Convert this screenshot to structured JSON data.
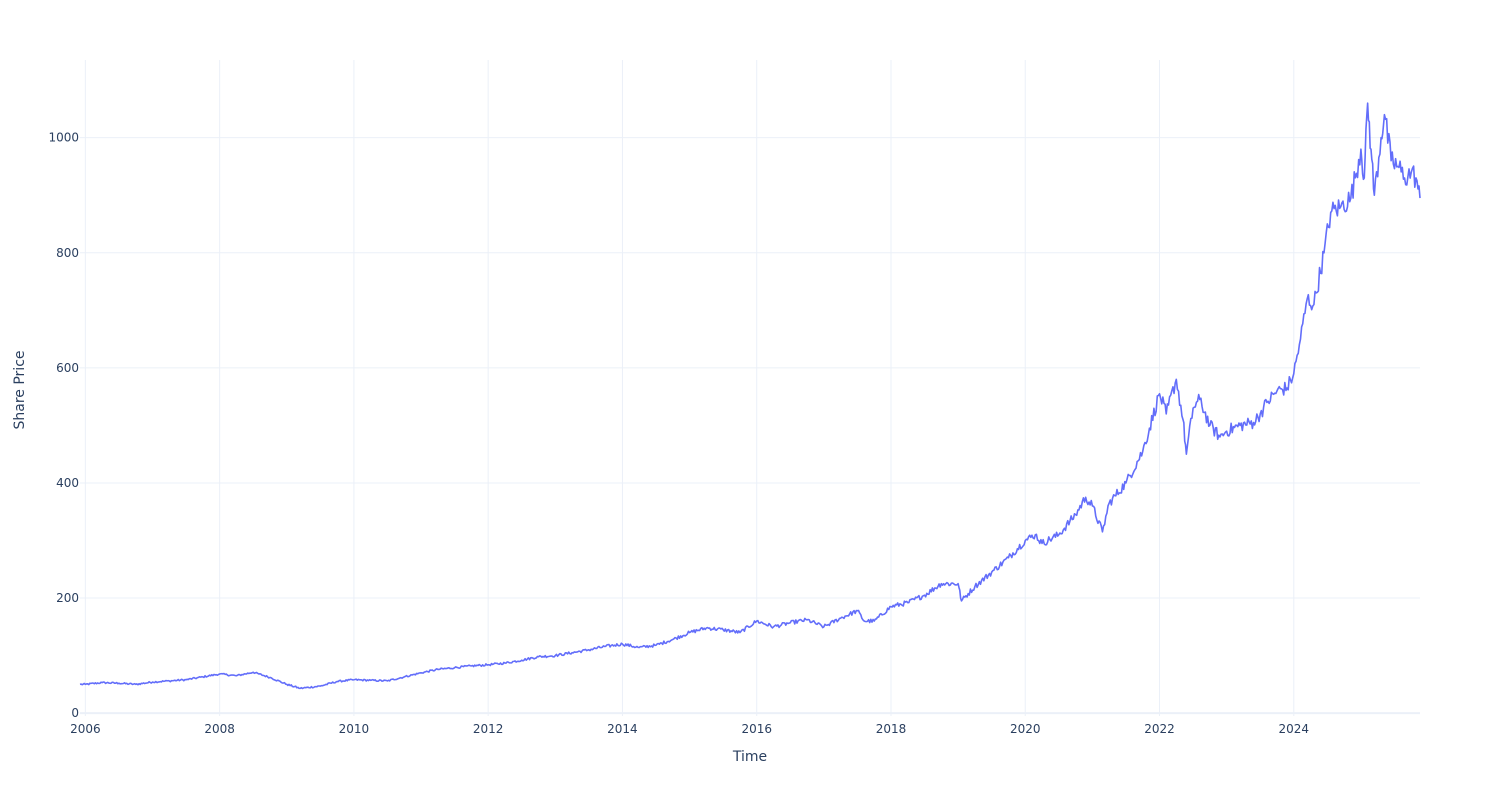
{
  "chart_data": {
    "type": "line",
    "title": "",
    "xlabel": "Time",
    "ylabel": "Share Price",
    "xlim": [
      2005.92,
      2025.88
    ],
    "ylim": [
      -5,
      1135
    ],
    "x_ticks": [
      {
        "value": 2006,
        "label": "2006"
      },
      {
        "value": 2008,
        "label": "2008"
      },
      {
        "value": 2010,
        "label": "2010"
      },
      {
        "value": 2012,
        "label": "2012"
      },
      {
        "value": 2014,
        "label": "2014"
      },
      {
        "value": 2016,
        "label": "2016"
      },
      {
        "value": 2018,
        "label": "2018"
      },
      {
        "value": 2020,
        "label": "2020"
      },
      {
        "value": 2022,
        "label": "2022"
      },
      {
        "value": 2024,
        "label": "2024"
      }
    ],
    "y_ticks": [
      {
        "value": 0,
        "label": "0"
      },
      {
        "value": 200,
        "label": "200"
      },
      {
        "value": 400,
        "label": "400"
      },
      {
        "value": 600,
        "label": "600"
      },
      {
        "value": 800,
        "label": "800"
      },
      {
        "value": 1000,
        "label": "1000"
      }
    ],
    "grid": true,
    "legend": "none",
    "colors": {
      "line": "#636efa",
      "grid": "#ebf0f8",
      "text": "#2a3f5f"
    },
    "series": [
      {
        "x": [
          2005.92,
          2006.0,
          2006.25,
          2006.5,
          2006.75,
          2007.0,
          2007.25,
          2007.5,
          2007.75,
          2008.0,
          2008.25,
          2008.5,
          2008.75,
          2009.0,
          2009.2,
          2009.5,
          2009.75,
          2010.0,
          2010.25,
          2010.5,
          2010.75,
          2011.0,
          2011.25,
          2011.5,
          2011.75,
          2012.0,
          2012.25,
          2012.5,
          2012.75,
          2013.0,
          2013.25,
          2013.5,
          2013.75,
          2014.0,
          2014.25,
          2014.5,
          2014.75,
          2015.0,
          2015.25,
          2015.5,
          2015.75,
          2016.0,
          2016.25,
          2016.5,
          2016.75,
          2017.0,
          2017.25,
          2017.5,
          2017.6,
          2017.75,
          2018.0,
          2018.25,
          2018.5,
          2018.75,
          2019.0,
          2019.05,
          2019.25,
          2019.5,
          2019.75,
          2020.0,
          2020.15,
          2020.25,
          2020.5,
          2020.75,
          2020.9,
          2021.0,
          2021.15,
          2021.25,
          2021.5,
          2021.75,
          2022.0,
          2022.1,
          2022.25,
          2022.35,
          2022.4,
          2022.5,
          2022.6,
          2022.75,
          2022.9,
          2023.0,
          2023.2,
          2023.4,
          2023.5,
          2023.6,
          2023.75,
          2023.9,
          2024.0,
          2024.1,
          2024.2,
          2024.3,
          2024.45,
          2024.55,
          2024.7,
          2024.85,
          2025.0,
          2025.05,
          2025.1,
          2025.15,
          2025.2,
          2025.3,
          2025.35,
          2025.45,
          2025.55,
          2025.65,
          2025.75,
          2025.82,
          2025.88
        ],
        "y": [
          50,
          50,
          53,
          52,
          50,
          54,
          56,
          58,
          63,
          68,
          65,
          71,
          62,
          50,
          43,
          47,
          55,
          58,
          57,
          56,
          63,
          70,
          76,
          79,
          82,
          84,
          87,
          92,
          98,
          100,
          105,
          110,
          116,
          120,
          114,
          118,
          128,
          140,
          148,
          145,
          140,
          160,
          150,
          157,
          162,
          150,
          165,
          178,
          160,
          160,
          185,
          192,
          205,
          225,
          225,
          195,
          220,
          245,
          270,
          300,
          310,
          295,
          310,
          345,
          375,
          360,
          315,
          365,
          400,
          455,
          555,
          520,
          580,
          510,
          450,
          530,
          545,
          500,
          480,
          490,
          500,
          505,
          520,
          540,
          560,
          565,
          590,
          650,
          720,
          710,
          800,
          870,
          880,
          895,
          980,
          930,
          1060,
          980,
          900,
          1000,
          1040,
          960,
          950,
          930,
          940,
          930,
          895
        ]
      }
    ]
  }
}
